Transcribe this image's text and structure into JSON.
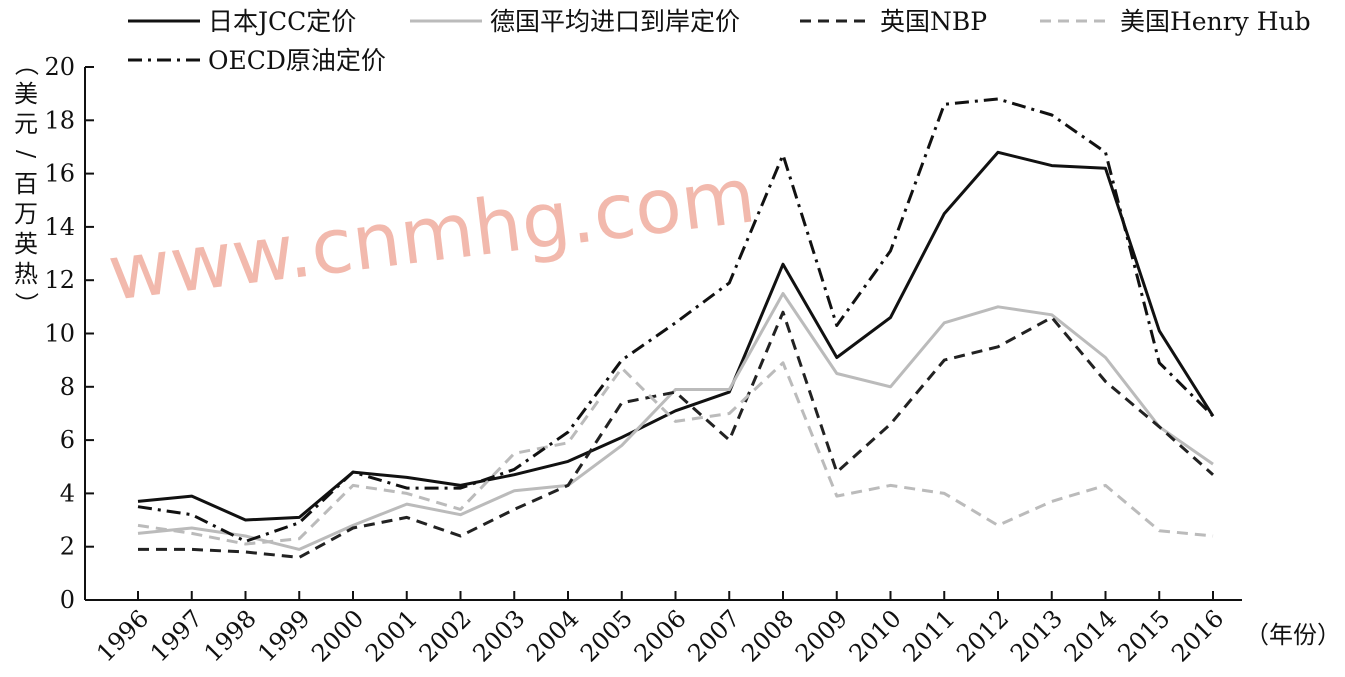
{
  "chart_data": {
    "type": "line",
    "title": "",
    "ylabel": "（美元/百万英热）",
    "xlabel": "（年份）",
    "ylim": [
      0,
      20
    ],
    "yticks": [
      0,
      2,
      4,
      6,
      8,
      10,
      12,
      14,
      16,
      18,
      20
    ],
    "grid": false,
    "legend_position": "top",
    "categories": [
      "1996",
      "1997",
      "1998",
      "1999",
      "2000",
      "2001",
      "2002",
      "2003",
      "2004",
      "2005",
      "2006",
      "2007",
      "2008",
      "2009",
      "2010",
      "2011",
      "2012",
      "2013",
      "2014",
      "2015",
      "2016"
    ],
    "series": [
      {
        "name": "日本JCC定价",
        "color": "#111111",
        "style": "solid",
        "values": [
          3.7,
          3.9,
          3.0,
          3.1,
          4.8,
          4.6,
          4.3,
          4.7,
          5.2,
          6.1,
          7.1,
          7.8,
          12.6,
          9.1,
          10.6,
          14.5,
          16.8,
          16.3,
          16.2,
          10.1,
          6.9
        ]
      },
      {
        "name": "德国平均进口到岸定价",
        "color": "#bbbbbb",
        "style": "solid",
        "values": [
          2.5,
          2.7,
          2.4,
          1.9,
          2.8,
          3.6,
          3.2,
          4.1,
          4.3,
          5.8,
          7.9,
          7.9,
          11.5,
          8.5,
          8.0,
          10.4,
          11.0,
          10.7,
          9.1,
          6.5,
          5.1
        ]
      },
      {
        "name": "英国NBP",
        "color": "#222222",
        "style": "dashed",
        "values": [
          1.9,
          1.9,
          1.8,
          1.6,
          2.7,
          3.1,
          2.4,
          3.4,
          4.3,
          7.4,
          7.8,
          6.0,
          10.8,
          4.8,
          6.6,
          9.0,
          9.5,
          10.6,
          8.2,
          6.5,
          4.7
        ]
      },
      {
        "name": "美国Henry Hub",
        "color": "#bbbbbb",
        "style": "dashed",
        "values": [
          2.8,
          2.5,
          2.1,
          2.3,
          4.3,
          4.0,
          3.4,
          5.5,
          5.9,
          8.7,
          6.7,
          7.0,
          8.9,
          3.9,
          4.3,
          4.0,
          2.8,
          3.7,
          4.3,
          2.6,
          2.4
        ]
      },
      {
        "name": "OECD原油定价",
        "color": "#111111",
        "style": "dashdot",
        "values": [
          3.5,
          3.2,
          2.2,
          2.9,
          4.8,
          4.2,
          4.2,
          4.9,
          6.3,
          9.0,
          10.4,
          11.9,
          16.7,
          10.3,
          13.1,
          18.6,
          18.8,
          18.2,
          16.8,
          8.9,
          6.9
        ]
      }
    ]
  },
  "watermark": "www.cnmhg.com"
}
